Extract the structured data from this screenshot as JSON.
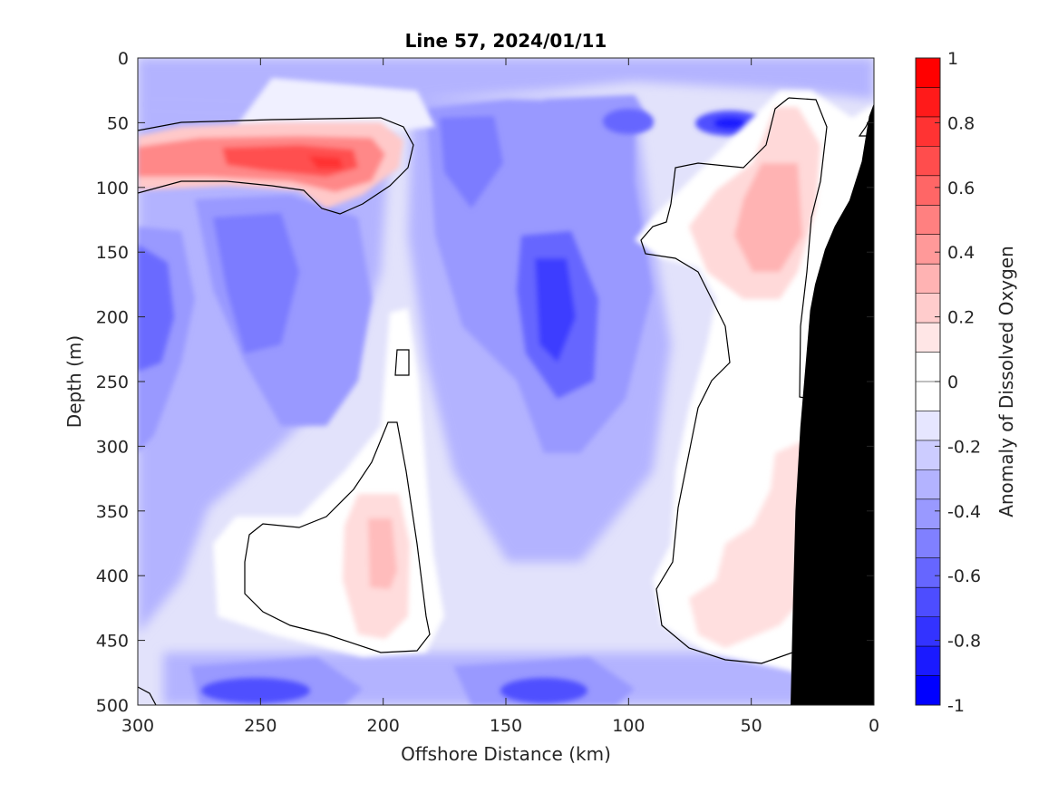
{
  "chart_data": {
    "type": "heatmap",
    "title": "Line 57, 2024/01/11",
    "xlabel": "Offshore Distance (km)",
    "ylabel": "Depth (m)",
    "colorbar_label": "Anomaly of Dissolved Oxygen",
    "xlim": [
      300,
      0
    ],
    "ylim": [
      0,
      500
    ],
    "x_reversed": true,
    "y_reversed": true,
    "xticks": [
      300,
      250,
      200,
      150,
      100,
      50,
      0
    ],
    "xtick_labels": [
      "300",
      "250",
      "200",
      "150",
      "100",
      "50",
      "0"
    ],
    "yticks": [
      0,
      50,
      100,
      150,
      200,
      250,
      300,
      350,
      400,
      450,
      500
    ],
    "ytick_labels": [
      "0",
      "50",
      "100",
      "150",
      "200",
      "250",
      "300",
      "350",
      "400",
      "450",
      "500"
    ],
    "colorbar": {
      "range": [
        -1,
        1
      ],
      "ticks": [
        1,
        0.8,
        0.6,
        0.4,
        0.2,
        0,
        -0.2,
        -0.4,
        -0.6,
        -0.8,
        -1
      ],
      "tick_labels": [
        "1",
        "0.8",
        "0.6",
        "0.4",
        "0.2",
        "0",
        "-0.2",
        "-0.4",
        "-0.6",
        "-0.8",
        "-1"
      ],
      "levels": 20,
      "colors": [
        "#ff0000",
        "#ff1a1a",
        "#ff3333",
        "#ff4d4d",
        "#ff6666",
        "#ff8080",
        "#ff9999",
        "#ffb3b3",
        "#ffcccc",
        "#ffe6e6",
        "#ffffff",
        "#ffffff",
        "#e6e6ff",
        "#ccccff",
        "#b3b3ff",
        "#9999ff",
        "#8080ff",
        "#6666ff",
        "#4d4dff",
        "#3333ff",
        "#1a1aff",
        "#0000ff"
      ]
    },
    "grid": false,
    "legend": "none",
    "features": [
      {
        "kind": "positive_anomaly",
        "x_center": 240,
        "depth_center": 78,
        "peak": 0.75
      },
      {
        "kind": "positive_anomaly",
        "x_center": 45,
        "depth_center": 130,
        "peak": 0.35
      },
      {
        "kind": "positive_anomaly",
        "x_center": 197,
        "depth_center": 385,
        "peak": 0.25
      },
      {
        "kind": "positive_anomaly",
        "x_center": 45,
        "depth_center": 410,
        "peak": 0.15
      },
      {
        "kind": "negative_anomaly",
        "x_center": 129,
        "depth_center": 185,
        "peak": -0.75
      },
      {
        "kind": "negative_anomaly",
        "x_center": 250,
        "depth_center": 140,
        "peak": -0.6
      },
      {
        "kind": "negative_anomaly",
        "x_center": 297,
        "depth_center": 190,
        "peak": -0.6
      },
      {
        "kind": "negative_anomaly",
        "x_center": 165,
        "depth_center": 60,
        "peak": -0.6
      },
      {
        "kind": "negative_anomaly",
        "x_center": 60,
        "depth_center": 50,
        "peak": -0.75
      },
      {
        "kind": "negative_anomaly",
        "x_center": 100,
        "depth_center": 48,
        "peak": -0.6
      },
      {
        "kind": "negative_anomaly",
        "x_center": 250,
        "depth_center": 490,
        "peak": -0.6
      },
      {
        "kind": "negative_anomaly",
        "x_center": 133,
        "depth_center": 488,
        "peak": -0.6
      }
    ],
    "zero_contour": "black line",
    "seafloor": "black fill",
    "seafloor_profile": [
      [
        0,
        35
      ],
      [
        2,
        45
      ],
      [
        5,
        80
      ],
      [
        10,
        110
      ],
      [
        16,
        130
      ],
      [
        20,
        148
      ],
      [
        24,
        175
      ],
      [
        26,
        195
      ],
      [
        30,
        285
      ],
      [
        32,
        350
      ],
      [
        33,
        420
      ],
      [
        34,
        500
      ]
    ]
  }
}
